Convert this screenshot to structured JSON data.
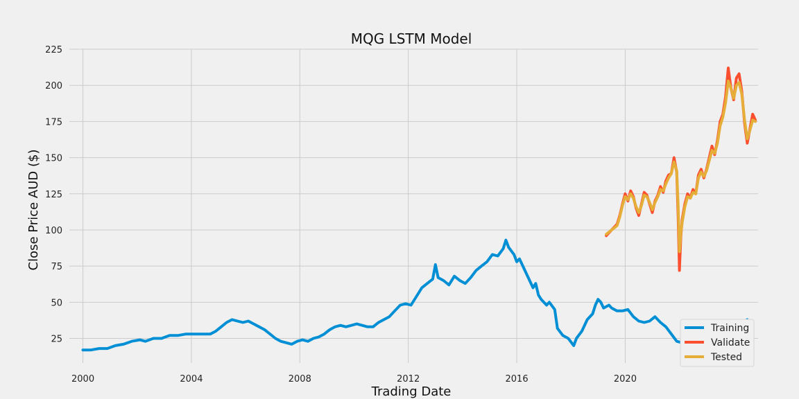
{
  "chart_data": {
    "type": "line",
    "title": "MQG LSTM Model",
    "xlabel": "Trading Date",
    "ylabel": "Close Price AUD ($)",
    "xlim": [
      1999.5,
      2024.9
    ],
    "ylim": [
      8,
      225
    ],
    "x_ticks": [
      2000,
      2004,
      2008,
      2012,
      2016,
      2020
    ],
    "x_tick_labels": [
      "2000",
      "2004",
      "2008",
      "2012",
      "2016",
      "2020"
    ],
    "y_ticks": [
      25,
      50,
      75,
      100,
      125,
      150,
      175,
      200,
      225
    ],
    "y_tick_labels": [
      "25",
      "50",
      "75",
      "100",
      "125",
      "150",
      "175",
      "200",
      "225"
    ],
    "grid": true,
    "legend_position": "bottom-right",
    "series": [
      {
        "name": "Training",
        "color": "#008fd5",
        "points": [
          [
            2000.0,
            17
          ],
          [
            2000.3,
            17
          ],
          [
            2000.6,
            18
          ],
          [
            2000.9,
            18
          ],
          [
            2001.2,
            20
          ],
          [
            2001.5,
            21
          ],
          [
            2001.8,
            23
          ],
          [
            2002.1,
            24
          ],
          [
            2002.3,
            23
          ],
          [
            2002.6,
            25
          ],
          [
            2002.9,
            25
          ],
          [
            2003.2,
            27
          ],
          [
            2003.5,
            27
          ],
          [
            2003.8,
            28
          ],
          [
            2004.1,
            28
          ],
          [
            2004.4,
            28
          ],
          [
            2004.7,
            28
          ],
          [
            2004.9,
            30
          ],
          [
            2005.1,
            33
          ],
          [
            2005.3,
            36
          ],
          [
            2005.5,
            38
          ],
          [
            2005.7,
            37
          ],
          [
            2005.9,
            36
          ],
          [
            2006.1,
            37
          ],
          [
            2006.3,
            35
          ],
          [
            2006.5,
            33
          ],
          [
            2006.7,
            31
          ],
          [
            2006.9,
            28
          ],
          [
            2007.1,
            25
          ],
          [
            2007.3,
            23
          ],
          [
            2007.5,
            22
          ],
          [
            2007.7,
            21
          ],
          [
            2007.9,
            23
          ],
          [
            2008.1,
            24
          ],
          [
            2008.3,
            23
          ],
          [
            2008.5,
            25
          ],
          [
            2008.7,
            26
          ],
          [
            2008.9,
            28
          ],
          [
            2009.1,
            31
          ],
          [
            2009.3,
            33
          ],
          [
            2009.5,
            34
          ],
          [
            2009.7,
            33
          ],
          [
            2009.9,
            34
          ],
          [
            2010.1,
            35
          ],
          [
            2010.3,
            34
          ],
          [
            2010.5,
            33
          ],
          [
            2010.7,
            33
          ],
          [
            2010.9,
            36
          ],
          [
            2011.1,
            38
          ],
          [
            2011.3,
            40
          ],
          [
            2011.5,
            44
          ],
          [
            2011.7,
            48
          ],
          [
            2011.9,
            49
          ],
          [
            2012.1,
            48
          ],
          [
            2012.3,
            54
          ],
          [
            2012.5,
            60
          ],
          [
            2012.7,
            63
          ],
          [
            2012.9,
            66
          ],
          [
            2013.0,
            76
          ],
          [
            2013.1,
            67
          ],
          [
            2013.3,
            65
          ],
          [
            2013.5,
            62
          ],
          [
            2013.7,
            68
          ],
          [
            2013.9,
            65
          ],
          [
            2014.1,
            63
          ],
          [
            2014.3,
            67
          ],
          [
            2014.5,
            72
          ],
          [
            2014.7,
            75
          ],
          [
            2014.9,
            78
          ],
          [
            2015.1,
            83
          ],
          [
            2015.3,
            82
          ],
          [
            2015.5,
            87
          ],
          [
            2015.6,
            93
          ],
          [
            2015.7,
            88
          ],
          [
            2015.9,
            83
          ],
          [
            2016.0,
            78
          ],
          [
            2016.1,
            80
          ],
          [
            2016.3,
            72
          ],
          [
            2016.5,
            64
          ],
          [
            2016.6,
            60
          ],
          [
            2016.7,
            63
          ],
          [
            2016.8,
            55
          ],
          [
            2016.9,
            52
          ],
          [
            2017.1,
            48
          ],
          [
            2017.2,
            50
          ],
          [
            2017.4,
            45
          ],
          [
            2017.5,
            32
          ],
          [
            2017.7,
            27
          ],
          [
            2017.9,
            25
          ],
          [
            2018.1,
            20
          ],
          [
            2018.2,
            25
          ],
          [
            2018.4,
            30
          ],
          [
            2018.6,
            38
          ],
          [
            2018.8,
            42
          ],
          [
            2018.9,
            48
          ],
          [
            2019.0,
            52
          ],
          [
            2019.1,
            50
          ],
          [
            2019.2,
            46
          ],
          [
            2019.4,
            48
          ],
          [
            2019.5,
            46
          ],
          [
            2019.7,
            44
          ],
          [
            2019.9,
            44
          ],
          [
            2020.1,
            45
          ],
          [
            2020.3,
            40
          ],
          [
            2020.5,
            37
          ],
          [
            2020.7,
            36
          ],
          [
            2020.9,
            37
          ],
          [
            2021.1,
            40
          ],
          [
            2021.3,
            36
          ],
          [
            2021.5,
            33
          ],
          [
            2021.7,
            28
          ],
          [
            2021.9,
            23
          ],
          [
            2022.1,
            22
          ],
          [
            2022.3,
            25
          ],
          [
            2022.5,
            24
          ],
          [
            2022.7,
            27
          ],
          [
            2022.9,
            28
          ],
          [
            2023.1,
            27
          ],
          [
            2023.3,
            25
          ],
          [
            2023.5,
            27
          ],
          [
            2023.7,
            30
          ],
          [
            2023.9,
            31
          ],
          [
            2024.1,
            34
          ],
          [
            2024.3,
            36
          ],
          [
            2024.5,
            38
          ]
        ]
      },
      {
        "name": "Validate",
        "color": "#fc4f30",
        "points": [
          [
            2019.3,
            96
          ],
          [
            2019.5,
            100
          ],
          [
            2019.7,
            104
          ],
          [
            2019.8,
            110
          ],
          [
            2019.9,
            118
          ],
          [
            2020.0,
            125
          ],
          [
            2020.1,
            120
          ],
          [
            2020.2,
            127
          ],
          [
            2020.3,
            123
          ],
          [
            2020.4,
            115
          ],
          [
            2020.5,
            110
          ],
          [
            2020.6,
            118
          ],
          [
            2020.7,
            126
          ],
          [
            2020.8,
            124
          ],
          [
            2020.9,
            118
          ],
          [
            2021.0,
            112
          ],
          [
            2021.1,
            120
          ],
          [
            2021.2,
            124
          ],
          [
            2021.3,
            130
          ],
          [
            2021.4,
            126
          ],
          [
            2021.5,
            134
          ],
          [
            2021.6,
            138
          ],
          [
            2021.7,
            139
          ],
          [
            2021.8,
            150
          ],
          [
            2021.9,
            140
          ],
          [
            2021.95,
            110
          ],
          [
            2022.0,
            72
          ],
          [
            2022.05,
            95
          ],
          [
            2022.1,
            107
          ],
          [
            2022.2,
            118
          ],
          [
            2022.3,
            125
          ],
          [
            2022.4,
            122
          ],
          [
            2022.5,
            128
          ],
          [
            2022.6,
            125
          ],
          [
            2022.7,
            138
          ],
          [
            2022.8,
            142
          ],
          [
            2022.9,
            136
          ],
          [
            2023.0,
            142
          ],
          [
            2023.1,
            150
          ],
          [
            2023.2,
            158
          ],
          [
            2023.3,
            152
          ],
          [
            2023.4,
            162
          ],
          [
            2023.5,
            175
          ],
          [
            2023.6,
            180
          ],
          [
            2023.7,
            192
          ],
          [
            2023.8,
            212
          ],
          [
            2023.9,
            198
          ],
          [
            2024.0,
            190
          ],
          [
            2024.1,
            205
          ],
          [
            2024.2,
            208
          ],
          [
            2024.3,
            196
          ],
          [
            2024.4,
            174
          ],
          [
            2024.5,
            160
          ],
          [
            2024.6,
            170
          ],
          [
            2024.7,
            180
          ],
          [
            2024.8,
            176
          ]
        ]
      },
      {
        "name": "Tested",
        "color": "#e5ae38",
        "points": [
          [
            2019.3,
            97
          ],
          [
            2019.5,
            100
          ],
          [
            2019.7,
            103
          ],
          [
            2019.8,
            109
          ],
          [
            2019.9,
            117
          ],
          [
            2020.0,
            123
          ],
          [
            2020.1,
            121
          ],
          [
            2020.2,
            125
          ],
          [
            2020.3,
            122
          ],
          [
            2020.4,
            116
          ],
          [
            2020.5,
            112
          ],
          [
            2020.6,
            117
          ],
          [
            2020.7,
            124
          ],
          [
            2020.8,
            123
          ],
          [
            2020.9,
            119
          ],
          [
            2021.0,
            114
          ],
          [
            2021.1,
            119
          ],
          [
            2021.2,
            123
          ],
          [
            2021.3,
            128
          ],
          [
            2021.4,
            127
          ],
          [
            2021.5,
            132
          ],
          [
            2021.6,
            136
          ],
          [
            2021.7,
            139
          ],
          [
            2021.8,
            147
          ],
          [
            2021.9,
            141
          ],
          [
            2021.95,
            118
          ],
          [
            2022.0,
            85
          ],
          [
            2022.05,
            97
          ],
          [
            2022.1,
            105
          ],
          [
            2022.2,
            116
          ],
          [
            2022.3,
            123
          ],
          [
            2022.4,
            122
          ],
          [
            2022.5,
            126
          ],
          [
            2022.6,
            125
          ],
          [
            2022.7,
            136
          ],
          [
            2022.8,
            140
          ],
          [
            2022.9,
            137
          ],
          [
            2023.0,
            141
          ],
          [
            2023.1,
            148
          ],
          [
            2023.2,
            155
          ],
          [
            2023.3,
            153
          ],
          [
            2023.4,
            160
          ],
          [
            2023.5,
            172
          ],
          [
            2023.6,
            178
          ],
          [
            2023.7,
            188
          ],
          [
            2023.8,
            203
          ],
          [
            2023.9,
            198
          ],
          [
            2024.0,
            191
          ],
          [
            2024.1,
            200
          ],
          [
            2024.2,
            202
          ],
          [
            2024.3,
            194
          ],
          [
            2024.4,
            176
          ],
          [
            2024.5,
            163
          ],
          [
            2024.6,
            169
          ],
          [
            2024.7,
            176
          ],
          [
            2024.8,
            175
          ]
        ]
      }
    ]
  }
}
